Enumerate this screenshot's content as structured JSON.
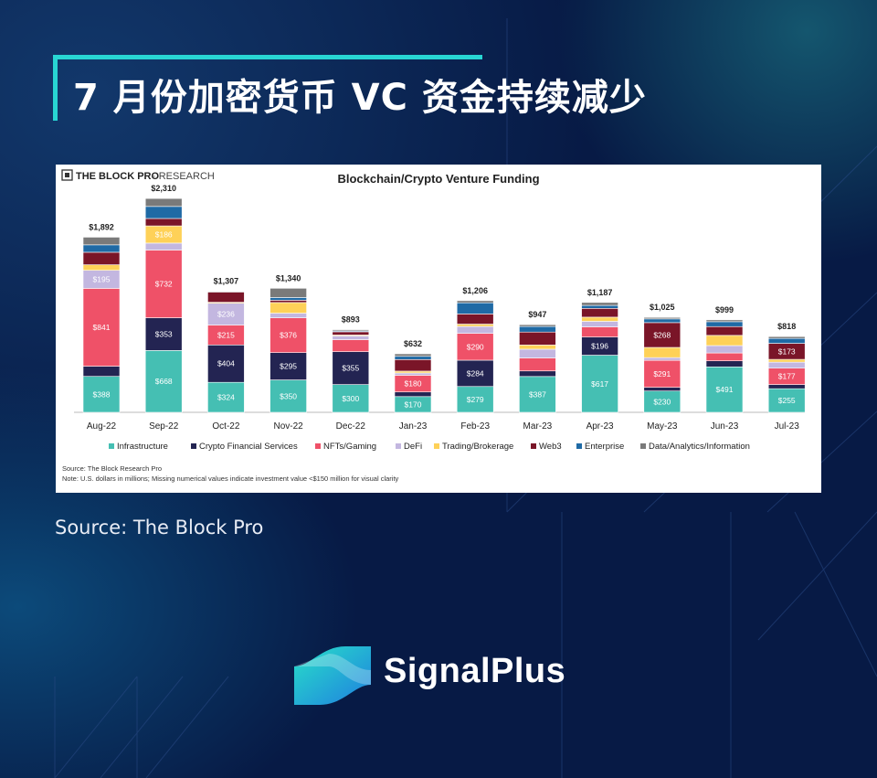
{
  "headline": "7 月份加密货币 VC 资金持续减少",
  "source_caption": "Source: The Block Pro",
  "brand": {
    "name": "SignalPlus"
  },
  "colors": {
    "Infrastructure": "#45bfb3",
    "Crypto Financial Services": "#232452",
    "NFTs/Gaming": "#ef5168",
    "DeFi": "#c3b7e0",
    "Trading/Brokerage": "#fed158",
    "Web3": "#7a1528",
    "Enterprise": "#1f6aa5",
    "Data/Analytics/Information": "#7a7a7a"
  },
  "chart_data": {
    "type": "bar",
    "stacked": true,
    "title": "Blockchain/Crypto Venture Funding",
    "header_brand": "THE BLOCK PRO",
    "header_sub": "· RESEARCH",
    "categories": [
      "Aug-22",
      "Sep-22",
      "Oct-22",
      "Nov-22",
      "Dec-22",
      "Jan-23",
      "Feb-23",
      "Mar-23",
      "Apr-23",
      "May-23",
      "Jun-23",
      "Jul-23"
    ],
    "totals": [
      1892,
      2310,
      1307,
      1340,
      893,
      632,
      1206,
      947,
      1187,
      1025,
      999,
      818
    ],
    "total_labels": [
      "$1,892",
      "$2,310",
      "$1,307",
      "$1,340",
      "$893",
      "$632",
      "$1,206",
      "$947",
      "$1,187",
      "$1,025",
      "$999",
      "$818"
    ],
    "ylim": [
      0,
      2400
    ],
    "grid": false,
    "legend_position": "bottom",
    "series": [
      {
        "name": "Infrastructure",
        "values": [
          388,
          668,
          324,
          350,
          300,
          170,
          279,
          387,
          617,
          230,
          491,
          255
        ],
        "labels": [
          "$388",
          "$668",
          "$324",
          "$350",
          "$300",
          "$170",
          "$279",
          "$387",
          "$617",
          "$230",
          "$491",
          "$255"
        ]
      },
      {
        "name": "Crypto Financial Services",
        "values": [
          110,
          353,
          404,
          295,
          355,
          50,
          284,
          60,
          196,
          40,
          65,
          45
        ],
        "labels": [
          "",
          "$353",
          "$404",
          "$295",
          "$355",
          "",
          "$284",
          "",
          "$196",
          "",
          "",
          ""
        ]
      },
      {
        "name": "NFTs/Gaming",
        "values": [
          841,
          732,
          215,
          376,
          130,
          180,
          290,
          140,
          110,
          291,
          85,
          177
        ],
        "labels": [
          "$841",
          "$732",
          "$215",
          "$376",
          "",
          "$180",
          "$290",
          "",
          "",
          "$291",
          "",
          "$177"
        ]
      },
      {
        "name": "DeFi",
        "values": [
          195,
          75,
          236,
          50,
          40,
          25,
          75,
          95,
          60,
          30,
          80,
          65
        ],
        "labels": [
          "$195",
          "",
          "$236",
          "",
          "",
          "",
          "",
          "",
          "",
          "",
          "",
          ""
        ]
      },
      {
        "name": "Trading/Brokerage",
        "values": [
          60,
          186,
          10,
          115,
          10,
          20,
          25,
          45,
          45,
          110,
          110,
          30
        ],
        "labels": [
          "",
          "$186",
          "",
          "",
          "",
          "",
          "",
          "",
          "",
          "",
          "",
          ""
        ]
      },
      {
        "name": "Web3",
        "values": [
          135,
          80,
          110,
          25,
          35,
          125,
          110,
          140,
          95,
          268,
          95,
          173
        ],
        "labels": [
          "",
          "",
          "",
          "",
          "",
          "",
          "",
          "",
          "",
          "$268",
          "",
          "$173"
        ]
      },
      {
        "name": "Enterprise",
        "values": [
          80,
          130,
          0,
          29,
          10,
          35,
          120,
          60,
          32,
          40,
          53,
          53
        ],
        "labels": [
          "",
          "",
          "",
          "",
          "",
          "",
          "",
          "",
          "",
          "",
          "",
          ""
        ]
      },
      {
        "name": "Data/Analytics/Information",
        "values": [
          83,
          86,
          8,
          100,
          13,
          27,
          23,
          20,
          32,
          16,
          20,
          20
        ],
        "labels": [
          "",
          "",
          "",
          "",
          "",
          "",
          "",
          "",
          "",
          "",
          "",
          ""
        ]
      }
    ],
    "footnote_source": "Source: The Block Research Pro",
    "footnote_note": "Note: U.S. dollars in millions; Missing numerical values indicate investment value <$150 million for visual clarity"
  }
}
